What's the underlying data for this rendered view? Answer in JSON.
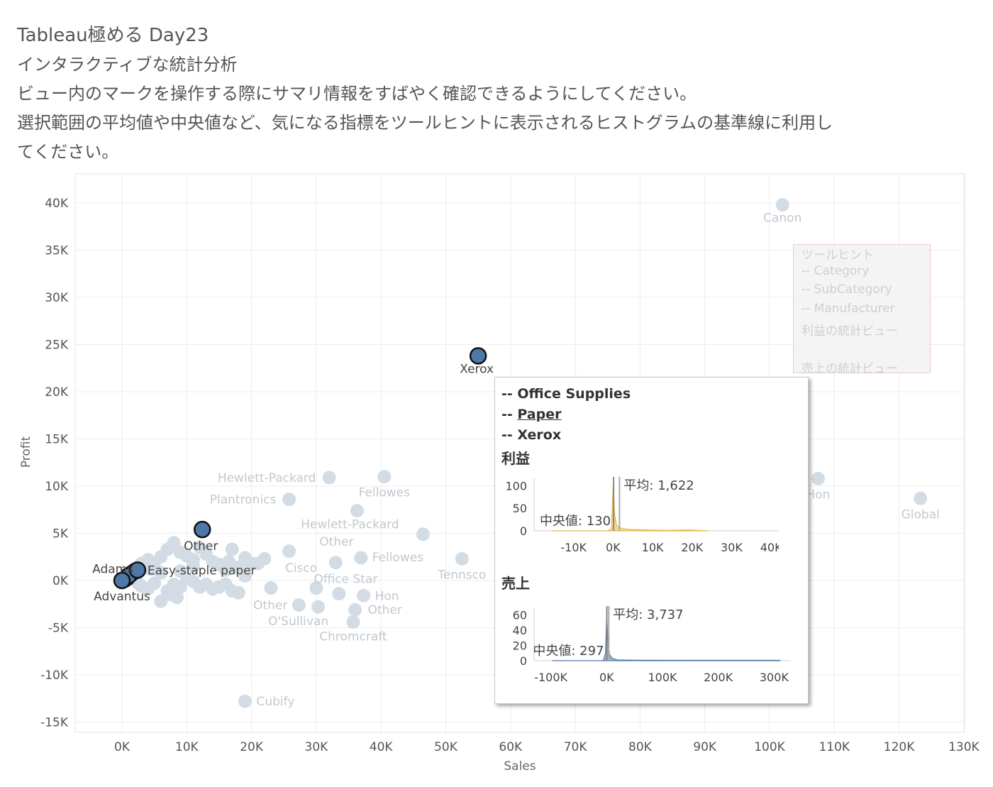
{
  "header": {
    "title": "Tableau極める Day23",
    "subtitle": "インタラクティブな統計分析",
    "line1": "ビュー内のマークを操作する際にサマリ情報をすばやく確認できるようにしてください。",
    "line2": "選択範囲の平均値や中央値など、気になる指標をツールヒントに表示されるヒストグラムの基準線に利用し",
    "line3": "てください。"
  },
  "colors": {
    "selected": "#4e79a7",
    "faded": "#d3dce4",
    "profit_hist": "#e8b84a",
    "sales_hist": "#4e79a7"
  },
  "chart_data": {
    "type": "scatter",
    "xlabel": "Sales",
    "ylabel": "Profit",
    "xlim": [
      -7000,
      130000
    ],
    "ylim": [
      -15500,
      43000
    ],
    "x_ticks": [
      "0K",
      "10K",
      "20K",
      "30K",
      "40K",
      "50K",
      "60K",
      "70K",
      "80K",
      "90K",
      "100K",
      "110K",
      "120K",
      "130K"
    ],
    "y_ticks": [
      "-15K",
      "-10K",
      "-5K",
      "0K",
      "5K",
      "10K",
      "15K",
      "20K",
      "25K",
      "30K",
      "35K",
      "40K"
    ],
    "grid": true,
    "labeled_points": [
      {
        "label": "Canon",
        "x": 102000,
        "y": 39800,
        "selected": false
      },
      {
        "label": "Xerox",
        "x": 55000,
        "y": 23800,
        "selected": true
      },
      {
        "label": "Hewlett-Packard",
        "x": 32000,
        "y": 10900,
        "selected": false
      },
      {
        "label": "Fellowes",
        "x": 40500,
        "y": 11000,
        "selected": false
      },
      {
        "label": "Plantronics",
        "x": 25800,
        "y": 8600,
        "selected": false
      },
      {
        "label": "Hewlett-Packard",
        "x": 36300,
        "y": 7400,
        "selected": false
      },
      {
        "label": "Other",
        "x": 12400,
        "y": 5400,
        "selected": true
      },
      {
        "label": "Other",
        "x": 46500,
        "y": 4900,
        "selected": false
      },
      {
        "label": "Fellowes",
        "x": 36900,
        "y": 2400,
        "selected": false
      },
      {
        "label": "Tennsco",
        "x": 52500,
        "y": 2300,
        "selected": false
      },
      {
        "label": "Cisco",
        "x": 25800,
        "y": 3100,
        "selected": false
      },
      {
        "label": "Office Star",
        "x": 33000,
        "y": 1900,
        "selected": false
      },
      {
        "label": "Hon",
        "x": 37300,
        "y": -1600,
        "selected": false
      },
      {
        "label": "Other",
        "x": 36000,
        "y": -3100,
        "selected": false
      },
      {
        "label": "Other",
        "x": 27300,
        "y": -2600,
        "selected": false
      },
      {
        "label": "O'Sullivan",
        "x": 30300,
        "y": -2800,
        "selected": false
      },
      {
        "label": "Chromcraft",
        "x": 35700,
        "y": -4400,
        "selected": false
      },
      {
        "label": "Cubify",
        "x": 19000,
        "y": -12800,
        "selected": false
      },
      {
        "label": "Hon",
        "x": 107500,
        "y": 10800,
        "selected": false
      },
      {
        "label": "Global",
        "x": 123300,
        "y": 8700,
        "selected": false
      },
      {
        "label": "Adams",
        "x": 1000,
        "y": 500,
        "selected": true
      },
      {
        "label": "Easy-staple paper",
        "x": 2400,
        "y": 1100,
        "selected": true
      },
      {
        "label": "Advantus",
        "x": 0,
        "y": 0,
        "selected": true
      }
    ],
    "unlabeled_points": [
      [
        1500,
        400
      ],
      [
        500,
        200
      ],
      [
        2000,
        900
      ],
      [
        3000,
        1800
      ],
      [
        4000,
        2200
      ],
      [
        5000,
        1500
      ],
      [
        6000,
        2500
      ],
      [
        7000,
        3300
      ],
      [
        8000,
        4000
      ],
      [
        9000,
        3000
      ],
      [
        10000,
        2600
      ],
      [
        11000,
        2200
      ],
      [
        12000,
        3500
      ],
      [
        13000,
        2800
      ],
      [
        14000,
        2000
      ],
      [
        15000,
        1700
      ],
      [
        16000,
        1100
      ],
      [
        17000,
        3300
      ],
      [
        18000,
        1400
      ],
      [
        19000,
        2400
      ],
      [
        20000,
        1800
      ],
      [
        3000,
        -600
      ],
      [
        4000,
        -900
      ],
      [
        5000,
        -300
      ],
      [
        6000,
        -2200
      ],
      [
        7000,
        -1100
      ],
      [
        8000,
        -400
      ],
      [
        8500,
        -1800
      ],
      [
        9000,
        -700
      ],
      [
        10000,
        200
      ],
      [
        11000,
        -100
      ],
      [
        12000,
        -700
      ],
      [
        13000,
        -400
      ],
      [
        14000,
        -900
      ],
      [
        15000,
        -700
      ],
      [
        16000,
        -400
      ],
      [
        17000,
        -1100
      ],
      [
        18000,
        -1300
      ],
      [
        19000,
        500
      ],
      [
        21000,
        1800
      ],
      [
        23000,
        -800
      ],
      [
        30000,
        -800
      ],
      [
        33500,
        -1400
      ],
      [
        6000,
        800
      ],
      [
        9000,
        1000
      ],
      [
        2500,
        -300
      ],
      [
        4500,
        1200
      ],
      [
        7500,
        -1500
      ],
      [
        16500,
        2000
      ],
      [
        22000,
        2300
      ],
      [
        11000,
        1500
      ]
    ],
    "selected_extra": [
      [
        400,
        100
      ],
      [
        800,
        300
      ],
      [
        1200,
        600
      ],
      [
        1600,
        800
      ],
      [
        2000,
        1000
      ]
    ]
  },
  "tooltip": {
    "category": "-- Office Supplies",
    "subcategory_prefix": "-- ",
    "subcategory": "Paper",
    "manufacturer": "-- Xerox",
    "profit_title": "利益",
    "sales_title": "売上",
    "profit_hist": {
      "y_ticks": [
        "100",
        "50",
        "0"
      ],
      "x_ticks": [
        "-10K",
        "0K",
        "10K",
        "20K",
        "30K",
        "40K"
      ],
      "mean_label": "平均: 1,622",
      "median_label": "中央値: 130",
      "mean": 1622,
      "median": 130,
      "xlim": [
        -20000,
        45000
      ],
      "ylim": [
        0,
        110
      ]
    },
    "sales_hist": {
      "y_ticks": [
        "60",
        "40",
        "20",
        "0"
      ],
      "x_ticks": [
        "-100K",
        "0K",
        "100K",
        "200K",
        "300K"
      ],
      "mean_label": "平均: 3,737",
      "median_label": "中央値: 297",
      "mean": 3737,
      "median": 297,
      "xlim": [
        -130000,
        330000
      ],
      "ylim": [
        0,
        66
      ]
    }
  },
  "hidden_tooltip_preview": {
    "lines": [
      "ツールヒント",
      "-- Category",
      "-- SubCategory",
      "-- Manufacturer",
      "利益の統計ビュー",
      "",
      "売上の統計ビュー"
    ]
  }
}
